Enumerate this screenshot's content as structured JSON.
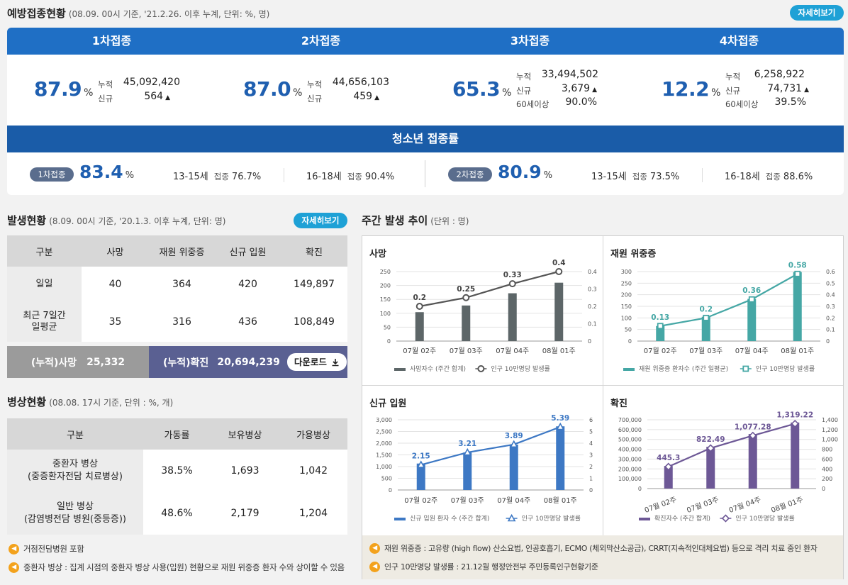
{
  "vaccination": {
    "title": "예방접종현황",
    "subtitle": "(08.09. 00시 기준, '21.2.26. 이후 누계, 단위: %, 명)",
    "detail_button": "자세히보기",
    "doses": [
      {
        "label": "1차접종",
        "pct": "87.9",
        "unit": "%",
        "cum_label": "누적",
        "cum": "45,092,420",
        "new_label": "신규",
        "new": "564"
      },
      {
        "label": "2차접종",
        "pct": "87.0",
        "unit": "%",
        "cum_label": "누적",
        "cum": "44,656,103",
        "new_label": "신규",
        "new": "459"
      },
      {
        "label": "3차접종",
        "pct": "65.3",
        "unit": "%",
        "cum_label": "누적",
        "cum": "33,494,502",
        "new_label": "신규",
        "new": "3,679",
        "age_label": "60세이상",
        "age": "90.0%"
      },
      {
        "label": "4차접종",
        "pct": "12.2",
        "unit": "%",
        "cum_label": "누적",
        "cum": "6,258,922",
        "new_label": "신규",
        "new": "74,731",
        "age_label": "60세이상",
        "age": "39.5%"
      }
    ],
    "youth": {
      "title": "청소년 접종률",
      "groups": [
        {
          "badge": "1차접종",
          "pct": "83.4",
          "unit": "%",
          "ages": [
            {
              "age": "13-15세",
              "label": "접종",
              "value": "76.7%"
            },
            {
              "age": "16-18세",
              "label": "접종",
              "value": "90.4%"
            }
          ]
        },
        {
          "badge": "2차접종",
          "pct": "80.9",
          "unit": "%",
          "ages": [
            {
              "age": "13-15세",
              "label": "접종",
              "value": "73.5%"
            },
            {
              "age": "16-18세",
              "label": "접종",
              "value": "88.6%"
            }
          ]
        }
      ]
    }
  },
  "occurrence": {
    "title": "발생현황",
    "subtitle": "(8.09. 00시 기준, '20.1.3. 이후 누계, 단위: 명)",
    "detail_button": "자세히보기",
    "headers": [
      "구분",
      "사망",
      "재원 위중증",
      "신규 입원",
      "확진"
    ],
    "rows": [
      {
        "label": "일일",
        "values": [
          "40",
          "364",
          "420",
          "149,897"
        ]
      },
      {
        "label_1": "최근 7일간",
        "label_2": "일평균",
        "values": [
          "35",
          "316",
          "436",
          "108,849"
        ]
      }
    ],
    "total_death_label": "(누적)사망",
    "total_death": "25,332",
    "total_confirmed_label": "(누적)확진",
    "total_confirmed": "20,694,239",
    "download_label": "다운로드"
  },
  "beds": {
    "title": "병상현황",
    "subtitle": "(08.08. 17시 기준, 단위 : %, 개)",
    "headers": [
      "구분",
      "가동률",
      "보유병상",
      "가용병상"
    ],
    "rows": [
      {
        "label_1": "중환자 병상",
        "label_2": "(중증환자전담 치료병상)",
        "values": [
          "38.5%",
          "1,693",
          "1,042"
        ]
      },
      {
        "label_1": "일반 병상",
        "label_2": "(감염병전담 병원(중등증))",
        "values": [
          "48.6%",
          "2,179",
          "1,204"
        ]
      }
    ],
    "notes": [
      "거점전담병원 포함",
      "중환자 병상 : 집계 시점의 중환자 병상 사용(입원) 현황으로 재원 위중증 환자 수와 상이할 수 있음"
    ]
  },
  "weekly": {
    "title": "주간 발생 추이",
    "subtitle": "(단위 : 명)",
    "notes": [
      "재원 위중증 : 고유량 (high flow) 산소요법, 인공호흡기, ECMO (체외막산소공급), CRRT(지속적인대체요법) 등으로 격리 치료 중인 환자",
      "인구 10만명당 발생률 : 21.12월 행정안전부 주민등록인구현황기준"
    ]
  },
  "chart_data": [
    {
      "type": "bar",
      "title": "사망",
      "categories": [
        "07월 02주",
        "07월 03주",
        "07월 04주",
        "08월 01주"
      ],
      "series": [
        {
          "name": "사망자수 (주간 합계)",
          "type": "bar",
          "values": [
            104,
            128,
            172,
            210
          ]
        },
        {
          "name": "인구 10만명당 발생률",
          "type": "line",
          "axis": "right",
          "values": [
            0.2,
            0.25,
            0.33,
            0.4
          ]
        }
      ],
      "left_ticks": [
        "0",
        "50",
        "100",
        "150",
        "200",
        "250"
      ],
      "right_ticks": [
        "0",
        "0.1",
        "0.2",
        "0.3",
        "0.4"
      ],
      "ylim": [
        0,
        250
      ],
      "y2lim": [
        0,
        0.4
      ],
      "bar_color": "#5d6668",
      "line_marker": "circle"
    },
    {
      "type": "bar",
      "title": "재원 위중증",
      "categories": [
        "07월 02주",
        "07월 03주",
        "07월 04주",
        "08월 01주"
      ],
      "series": [
        {
          "name": "재원 위중증 환자수 (주간 일평균)",
          "type": "bar",
          "values": [
            65,
            105,
            182,
            298
          ]
        },
        {
          "name": "인구 10만명당 발생률",
          "type": "line",
          "axis": "right",
          "values": [
            0.13,
            0.2,
            0.36,
            0.58
          ]
        }
      ],
      "left_ticks": [
        "0",
        "50",
        "100",
        "150",
        "200",
        "250",
        "300"
      ],
      "right_ticks": [
        "0",
        "0.1",
        "0.2",
        "0.3",
        "0.4",
        "0.5",
        "0.6"
      ],
      "ylim": [
        0,
        300
      ],
      "y2lim": [
        0,
        0.6
      ],
      "bar_color": "#45a7a5",
      "line_marker": "square"
    },
    {
      "type": "bar",
      "title": "신규 입원",
      "categories": [
        "07월 02주",
        "07월 03주",
        "07월 04주",
        "08월 01주"
      ],
      "series": [
        {
          "name": "신규 입원 환자 수 (주간 합계)",
          "type": "bar",
          "values": [
            1130,
            1600,
            1940,
            2720
          ]
        },
        {
          "name": "인구 10만명당 발생률",
          "type": "line",
          "axis": "right",
          "values": [
            2.15,
            3.21,
            3.89,
            5.39
          ]
        }
      ],
      "left_ticks": [
        "0",
        "500",
        "1,000",
        "1,500",
        "2,000",
        "2,500",
        "3,000"
      ],
      "right_ticks": [
        "0",
        "1",
        "2",
        "3",
        "4",
        "5",
        "6"
      ],
      "ylim": [
        0,
        3000
      ],
      "y2lim": [
        0,
        6
      ],
      "bar_color": "#3d78c4",
      "line_marker": "triangle"
    },
    {
      "type": "bar",
      "title": "확진",
      "categories": [
        "07월 02주",
        "07월 03주",
        "07월 04주",
        "08월 01주"
      ],
      "series": [
        {
          "name": "확진자수 (주간 합계)",
          "type": "bar",
          "values": [
            230000,
            425000,
            555000,
            672000
          ]
        },
        {
          "name": "인구 10만명당 발생률",
          "type": "line",
          "axis": "right",
          "values": [
            445.3,
            822.49,
            1077.28,
            1319.22
          ]
        }
      ],
      "left_ticks": [
        "0",
        "100,000",
        "200,000",
        "300,000",
        "400,000",
        "500,000",
        "600,000",
        "700,000"
      ],
      "right_ticks": [
        "0",
        "200",
        "400",
        "600",
        "800",
        "1,000",
        "1,200",
        "1,400"
      ],
      "ylim": [
        0,
        700000
      ],
      "y2lim": [
        0,
        1400
      ],
      "bar_color": "#6d5896",
      "line_marker": "diamond",
      "rotate_x_labels": true
    }
  ]
}
